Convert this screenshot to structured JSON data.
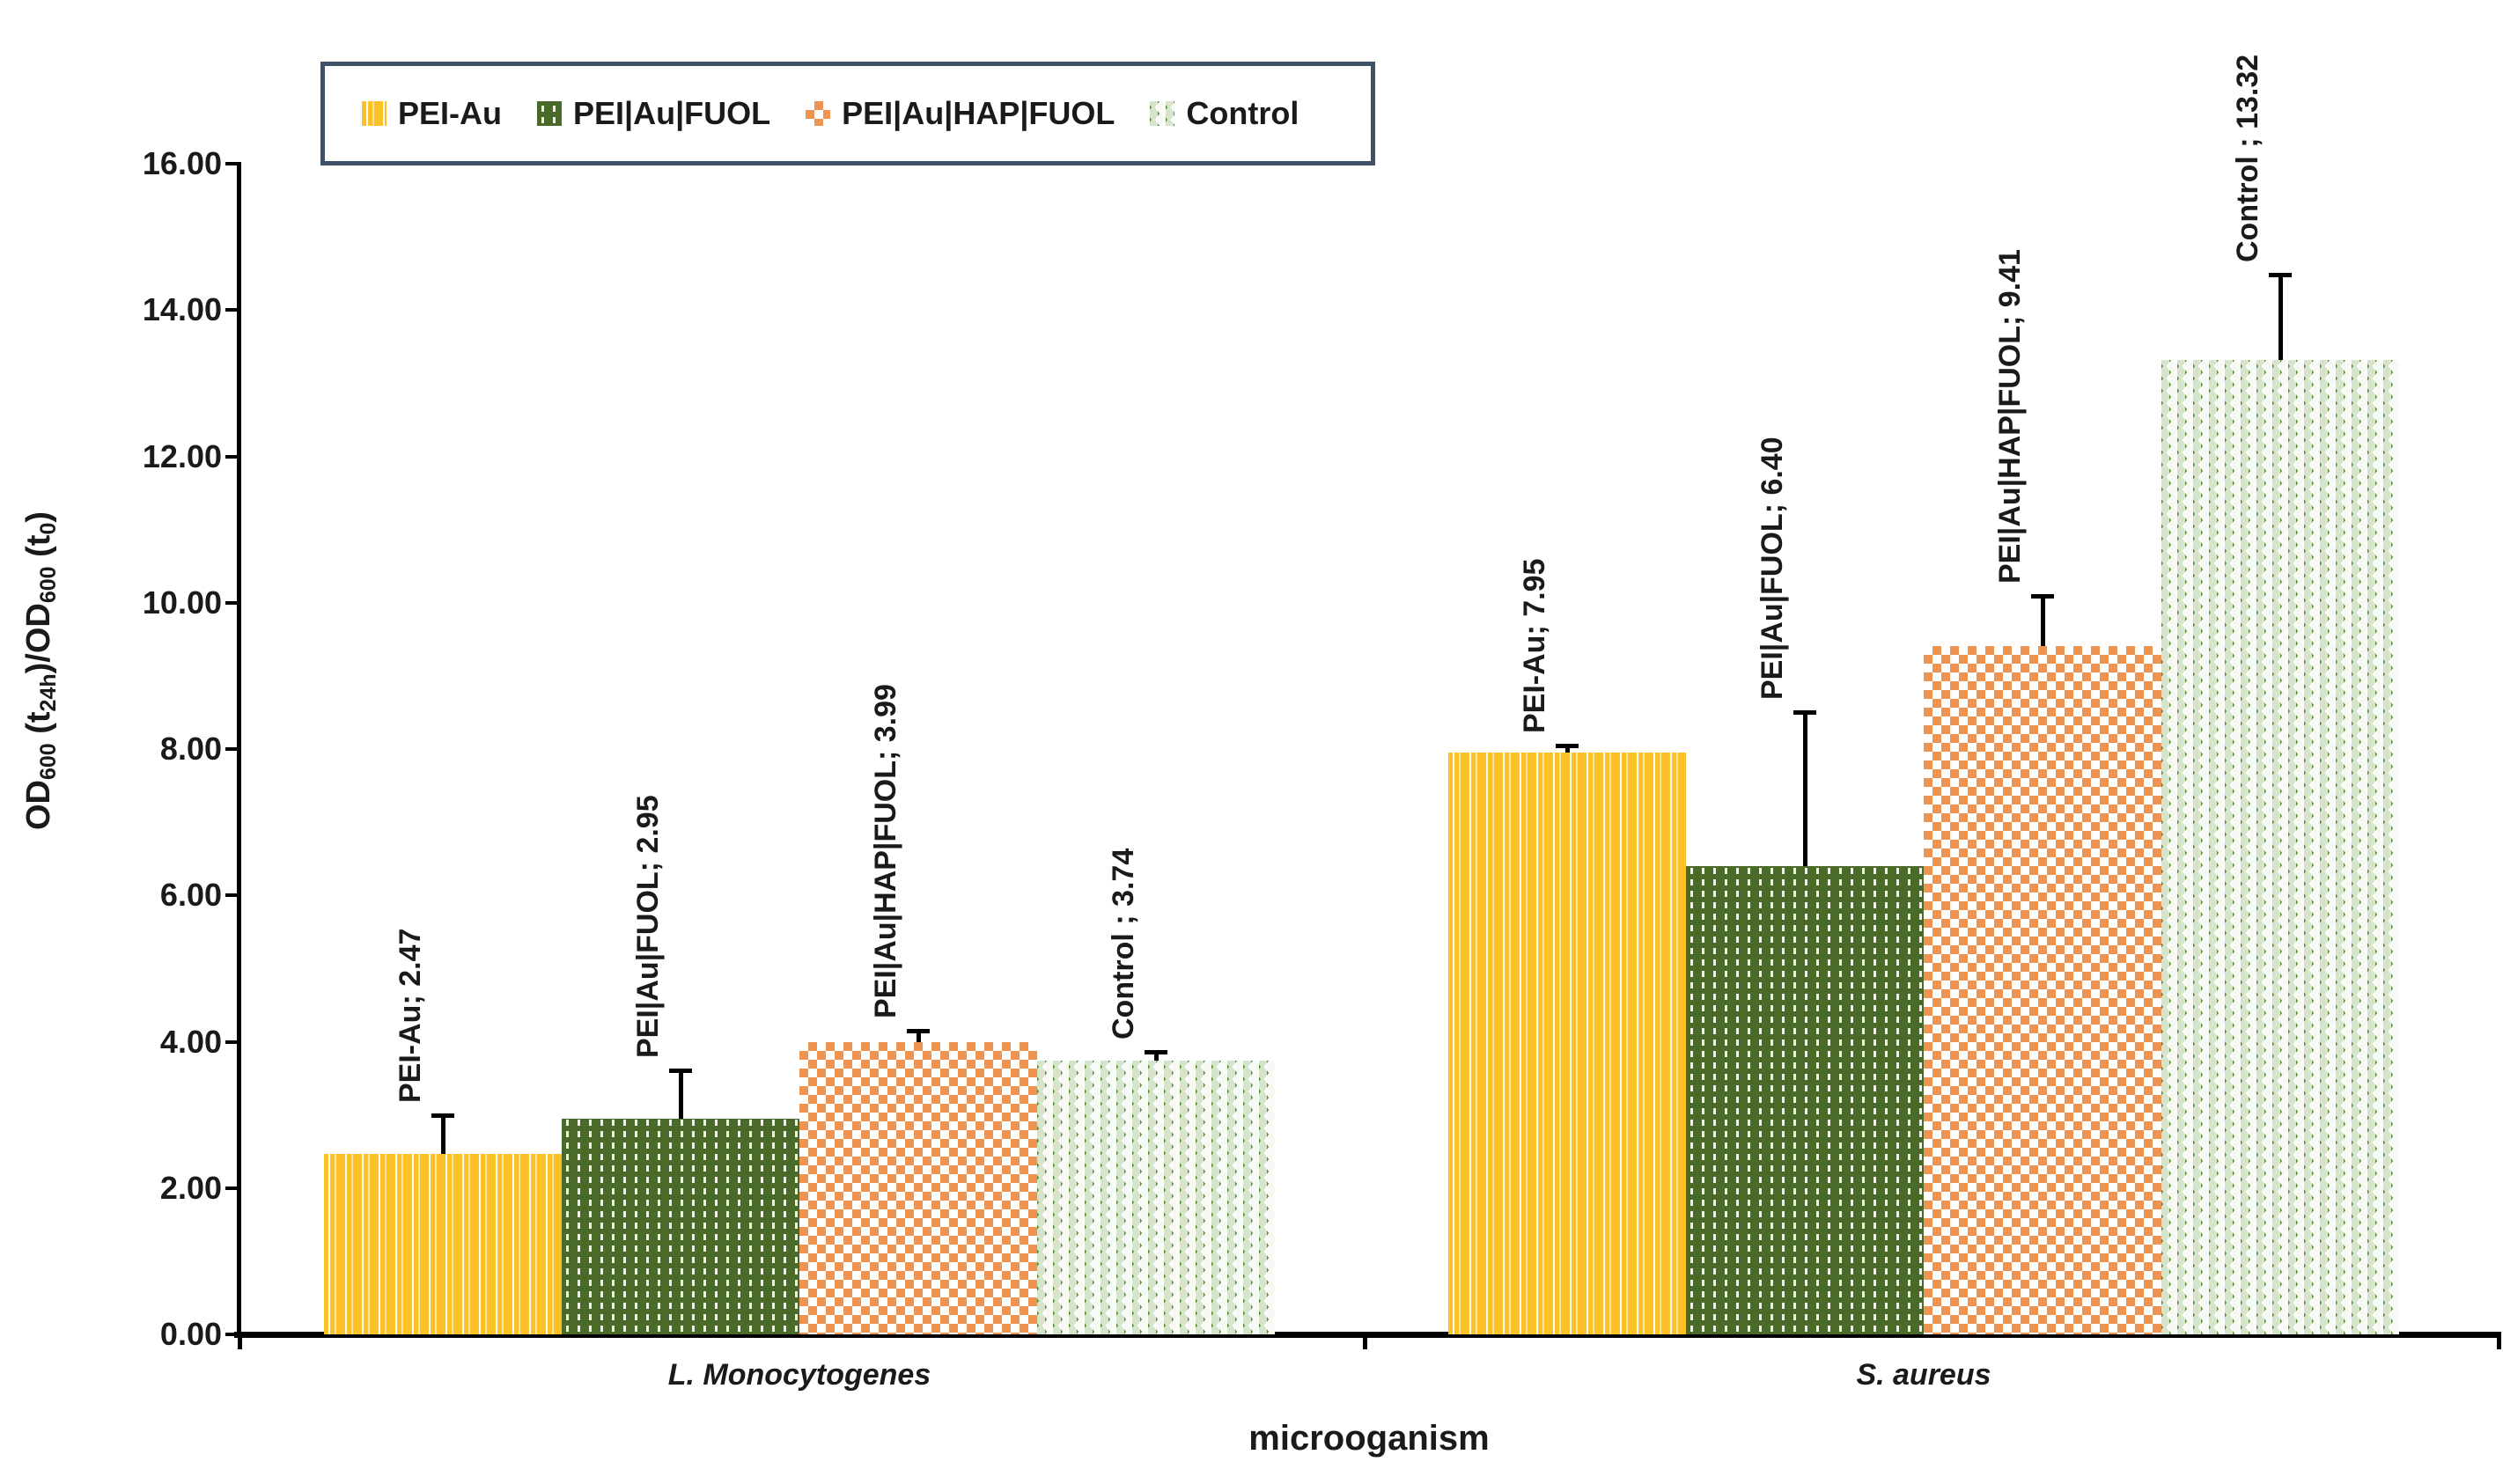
{
  "chart_data": {
    "type": "bar",
    "title": "",
    "xlabel": "microoganism",
    "ylabel": "OD600 (t24h)/OD600 (t0)",
    "ylabel_parts": [
      {
        "text": "OD"
      },
      {
        "text": "600",
        "sub": true
      },
      {
        "text": " (t"
      },
      {
        "text": "24h",
        "sub": true
      },
      {
        "text": ")/OD"
      },
      {
        "text": "600",
        "sub": true
      },
      {
        "text": " (t"
      },
      {
        "text": "0",
        "sub": true
      },
      {
        "text": ")"
      }
    ],
    "categories": [
      "L. Monocytogenes",
      "S. aureus"
    ],
    "series": [
      {
        "name": "PEI-Au",
        "pattern": "gold",
        "values": [
          2.47,
          7.95
        ],
        "errors_plus": [
          0.52,
          0.1
        ],
        "point_labels": [
          "PEI-Au; 2.47",
          "PEI-Au; 7.95"
        ]
      },
      {
        "name": "PEI|Au|FUOL",
        "pattern": "dgreen",
        "values": [
          2.95,
          6.4
        ],
        "errors_plus": [
          0.66,
          2.1
        ],
        "point_labels": [
          "PEI|Au|FUOL; 2.95",
          "PEI|Au|FUOL; 6.40"
        ]
      },
      {
        "name": "PEI|Au|HAP|FUOL",
        "pattern": "orange",
        "values": [
          3.99,
          9.41
        ],
        "errors_plus": [
          0.16,
          0.68
        ],
        "point_labels": [
          "PEI|Au|HAP|FUOL; 3.99",
          "PEI|Au|HAP|FUOL; 9.41"
        ]
      },
      {
        "name": "Control",
        "pattern": "green",
        "values": [
          3.74,
          13.32
        ],
        "errors_plus": [
          0.12,
          1.16
        ],
        "point_labels": [
          "Control ; 3.74",
          "Control ; 13.32"
        ]
      }
    ],
    "y_axis": {
      "min": 0,
      "max": 16,
      "step": 2,
      "tick_labels": [
        "0.00",
        "2.00",
        "4.00",
        "6.00",
        "8.00",
        "10.00",
        "12.00",
        "14.00",
        "16.00"
      ]
    },
    "legend": {
      "position": "top",
      "entries": [
        "PEI-Au",
        "PEI|Au|FUOL",
        "PEI|Au|HAP|FUOL",
        "Control"
      ]
    },
    "colors": {
      "gold": "#FDC128",
      "dark_green": "#4A6A29",
      "orange": "#EE9350",
      "green": "#5C9233",
      "legend_border": "#3F5166",
      "axis": "#000000",
      "text": "#1A1A1A"
    },
    "grid": false
  }
}
